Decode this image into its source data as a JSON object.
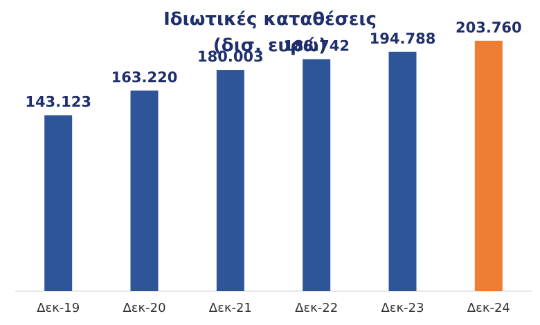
{
  "chart_data": {
    "type": "bar",
    "title": "Ιδιωτικές καταθέσεις",
    "subtitle": "(δισ. ευρώ)",
    "categories": [
      "Δεκ-19",
      "Δεκ-20",
      "Δεκ-21",
      "Δεκ-22",
      "Δεκ-23",
      "Δεκ-24"
    ],
    "values": [
      143123,
      163220,
      180003,
      188742,
      194788,
      203760
    ],
    "value_labels": [
      "143.123",
      "163.220",
      "180.003",
      "188.742",
      "194.788",
      "203.760"
    ],
    "ylim": [
      0,
      220000
    ],
    "grid": false,
    "legend": "none",
    "colors": {
      "bar": "#2e5597",
      "highlight": "#ed7d31",
      "label": "#1f2f6b",
      "tick": "#333333",
      "axis": "#d0d0d0"
    },
    "highlight_index": 5
  }
}
